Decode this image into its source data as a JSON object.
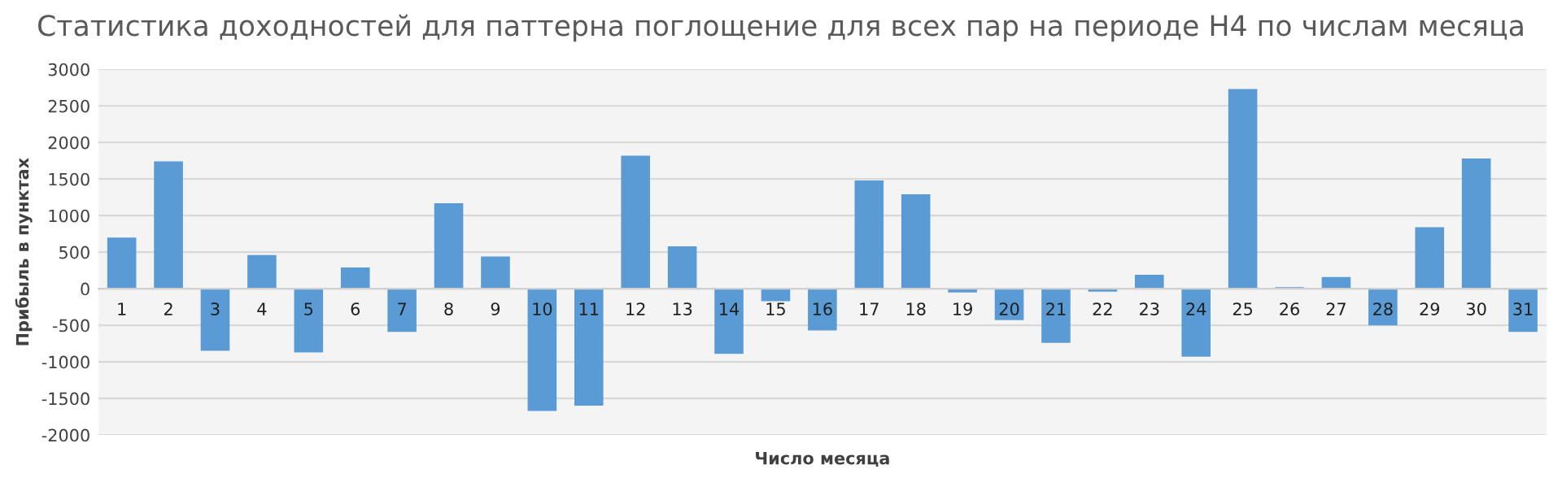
{
  "chart_data": {
    "type": "bar",
    "title": "Статистика доходностей для паттерна поглощение для всех пар на периоде H4 по числам месяца",
    "xlabel": "Число месяца",
    "ylabel": "Прибыль в пунктах",
    "categories": [
      "1",
      "2",
      "3",
      "4",
      "5",
      "6",
      "7",
      "8",
      "9",
      "10",
      "11",
      "12",
      "13",
      "14",
      "15",
      "16",
      "17",
      "18",
      "19",
      "20",
      "21",
      "22",
      "23",
      "24",
      "25",
      "26",
      "27",
      "28",
      "29",
      "30",
      "31"
    ],
    "values": [
      700,
      1740,
      -850,
      460,
      -870,
      290,
      -590,
      1170,
      440,
      -1670,
      -1600,
      1820,
      580,
      -890,
      -170,
      -570,
      1480,
      1290,
      -50,
      -430,
      -740,
      -40,
      190,
      -930,
      2730,
      20,
      160,
      -500,
      840,
      1780,
      -590
    ],
    "color": "#5b9bd5",
    "ylim": [
      -2000,
      3000
    ],
    "yticks": [
      -2000,
      -1500,
      -1000,
      -500,
      0,
      500,
      1000,
      1500,
      2000,
      2500,
      3000
    ],
    "grid": "y",
    "legend": false
  }
}
